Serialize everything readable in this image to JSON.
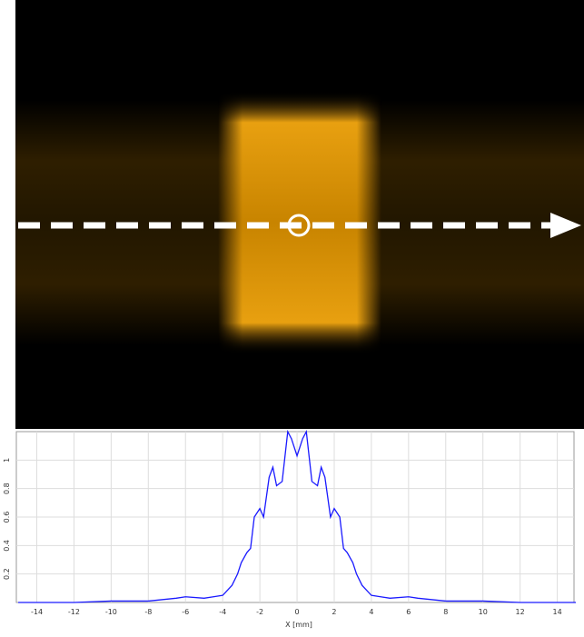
{
  "chart_data": {
    "type": "line",
    "x_label": "X [mm]",
    "x": [
      -15,
      -12,
      -10,
      -8,
      -6.5,
      -6,
      -5,
      -4.5,
      -4,
      -3.5,
      -3.2,
      -3,
      -2.7,
      -2.5,
      -2.3,
      -2,
      -1.8,
      -1.5,
      -1.3,
      -1.1,
      -0.8,
      -0.5,
      -0.3,
      0,
      0.3,
      0.5,
      0.8,
      1.1,
      1.3,
      1.5,
      1.8,
      2,
      2.3,
      2.5,
      2.7,
      3,
      3.2,
      3.5,
      4,
      4.5,
      5,
      6,
      6.5,
      8,
      10,
      12,
      15
    ],
    "values": [
      0,
      0,
      0.01,
      0.01,
      0.03,
      0.04,
      0.03,
      0.04,
      0.05,
      0.12,
      0.2,
      0.28,
      0.35,
      0.38,
      0.6,
      0.66,
      0.6,
      0.88,
      0.95,
      0.82,
      0.85,
      1.2,
      1.15,
      1.03,
      1.15,
      1.2,
      0.85,
      0.82,
      0.95,
      0.88,
      0.6,
      0.66,
      0.6,
      0.38,
      0.35,
      0.28,
      0.2,
      0.12,
      0.05,
      0.04,
      0.03,
      0.04,
      0.03,
      0.01,
      0.01,
      0,
      0
    ],
    "color": "#1a1aff",
    "xlim": [
      -15.1,
      14.9
    ],
    "ylim": [
      0,
      1.2
    ],
    "xticks": [
      -14,
      -12,
      -10,
      -8,
      -6,
      -4,
      -2,
      0,
      2,
      4,
      6,
      8,
      10,
      12,
      14
    ],
    "yticks": [
      0.2,
      0.4,
      0.6,
      0.8,
      1
    ],
    "grid": true
  }
}
